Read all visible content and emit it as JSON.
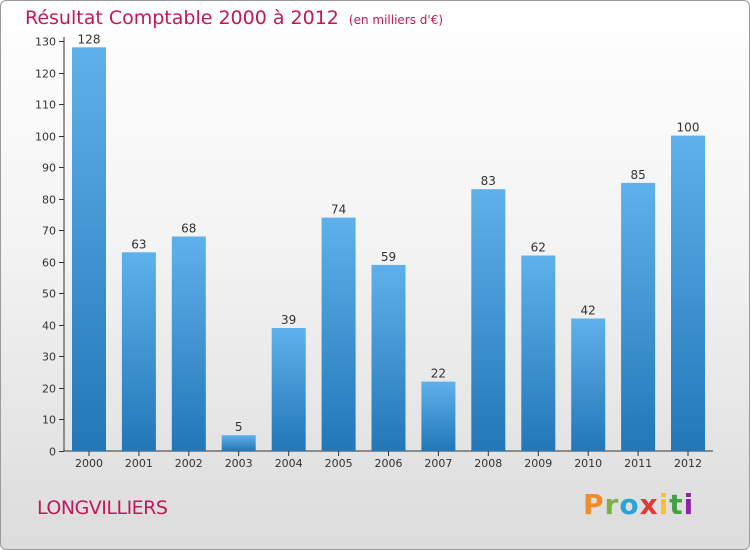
{
  "header": {
    "title": "Résultat Comptable 2000 à 2012",
    "subtitle": "(en milliers d'€)"
  },
  "footer": {
    "city": "LONGVILLIERS",
    "brand": "Proxiti",
    "brand_letters": [
      "P",
      "r",
      "o",
      "x",
      "i",
      "t",
      "i"
    ]
  },
  "colors": {
    "accent": "#c2185b",
    "bar_light": "#5eb1ea",
    "bar_dark": "#2277b8"
  },
  "chart_data": {
    "type": "bar",
    "title": "Résultat Comptable 2000 à 2012",
    "subtitle": "(en milliers d'€)",
    "xlabel": "",
    "ylabel": "",
    "categories": [
      "2000",
      "2001",
      "2002",
      "2003",
      "2004",
      "2005",
      "2006",
      "2007",
      "2008",
      "2009",
      "2010",
      "2011",
      "2012"
    ],
    "values": [
      128,
      63,
      68,
      5,
      39,
      74,
      59,
      22,
      83,
      62,
      42,
      85,
      100
    ],
    "ylim": [
      0,
      130
    ],
    "yticks": [
      0,
      10,
      20,
      30,
      40,
      50,
      60,
      70,
      80,
      90,
      100,
      110,
      120,
      130
    ],
    "grid": false,
    "data_labels": true
  }
}
